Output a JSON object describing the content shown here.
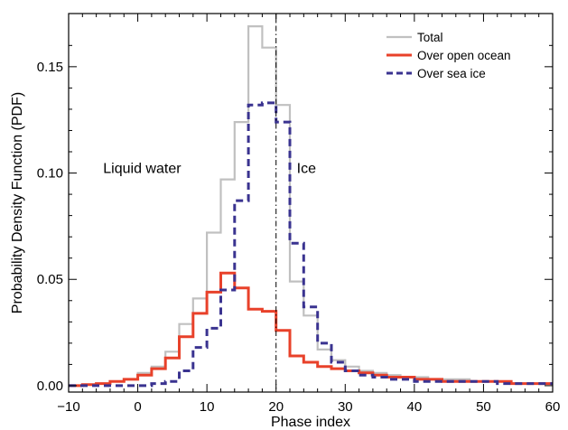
{
  "chart_data": {
    "type": "line",
    "xlabel": "Phase index",
    "ylabel": "Probability Density Function (PDF)",
    "xlim": [
      -10,
      60
    ],
    "ylim": [
      -0.003,
      0.175
    ],
    "x_ticks": [
      -10,
      0,
      10,
      20,
      30,
      40,
      50,
      60
    ],
    "x_tick_labels": [
      "−10",
      "0",
      "10",
      "20",
      "30",
      "40",
      "50",
      "60"
    ],
    "y_ticks": [
      0,
      0.05,
      0.1,
      0.15
    ],
    "y_tick_labels": [
      "0.00",
      "0.05",
      "0.10",
      "0.15"
    ],
    "step_edges": [
      -10,
      -8,
      -6,
      -4,
      -2,
      0,
      2,
      4,
      6,
      8,
      10,
      12,
      14,
      16,
      18,
      20,
      22,
      24,
      26,
      28,
      30,
      32,
      34,
      36,
      38,
      40,
      42,
      44,
      46,
      48,
      50,
      52,
      54,
      56,
      58,
      60
    ],
    "reference_line": {
      "x": 20,
      "style": "dash-dot"
    },
    "annotations": [
      {
        "text": "Liquid water",
        "x": -5,
        "y": 0.1
      },
      {
        "text": "Ice",
        "x": 23,
        "y": 0.1
      }
    ],
    "legend_position": "top-right",
    "series": [
      {
        "name": "Total",
        "color": "#c0c0c0",
        "dash": "solid",
        "values": [
          0.0,
          0.0005,
          0.001,
          0.002,
          0.003,
          0.006,
          0.009,
          0.016,
          0.029,
          0.041,
          0.072,
          0.097,
          0.124,
          0.169,
          0.159,
          0.132,
          0.049,
          0.033,
          0.017,
          0.012,
          0.009,
          0.007,
          0.006,
          0.005,
          0.004,
          0.004,
          0.003,
          0.003,
          0.003,
          0.002,
          0.002,
          0.002,
          0.001,
          0.001,
          0.001
        ]
      },
      {
        "name": "Over open ocean",
        "color": "#e8412a",
        "dash": "solid",
        "values": [
          0.0,
          0.0005,
          0.001,
          0.002,
          0.003,
          0.005,
          0.008,
          0.013,
          0.023,
          0.034,
          0.044,
          0.053,
          0.046,
          0.036,
          0.035,
          0.026,
          0.014,
          0.011,
          0.009,
          0.008,
          0.007,
          0.006,
          0.005,
          0.004,
          0.004,
          0.003,
          0.003,
          0.002,
          0.002,
          0.002,
          0.002,
          0.002,
          0.001,
          0.001,
          0.001
        ]
      },
      {
        "name": "Over sea ice",
        "color": "#3a3390",
        "dash": "dashed",
        "values": [
          0.0,
          0.0,
          0.0,
          0.0,
          0.0,
          0.0,
          0.001,
          0.002,
          0.007,
          0.018,
          0.027,
          0.045,
          0.087,
          0.132,
          0.133,
          0.124,
          0.067,
          0.037,
          0.02,
          0.011,
          0.007,
          0.005,
          0.004,
          0.003,
          0.003,
          0.002,
          0.002,
          0.002,
          0.002,
          0.002,
          0.002,
          0.001,
          0.001,
          0.001,
          0.001
        ]
      }
    ]
  }
}
